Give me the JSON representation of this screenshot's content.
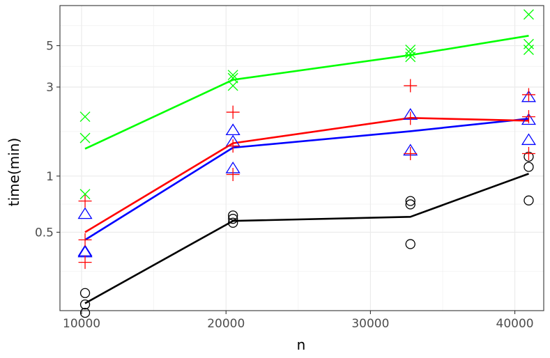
{
  "chart_data": {
    "type": "scatter",
    "xlabel": "n",
    "ylabel": "time(min)",
    "x_ticks": [
      10000,
      20000,
      30000,
      40000
    ],
    "x_tick_labels": [
      "10000",
      "20000",
      "30000",
      "40000"
    ],
    "y_ticks": [
      0.5,
      1,
      3,
      5
    ],
    "y_tick_labels": [
      "0.5",
      "1",
      "3",
      "5"
    ],
    "y_scale": "log",
    "xlim": [
      8500,
      42000
    ],
    "ylim": [
      0.19,
      8.2
    ],
    "grid": true,
    "legend": "none",
    "series": [
      {
        "marker": "circle",
        "color": "#000000",
        "points": [
          [
            10240,
            0.236
          ],
          [
            10240,
            0.205
          ],
          [
            10240,
            0.185
          ],
          [
            20480,
            0.615
          ],
          [
            20480,
            0.59
          ],
          [
            20480,
            0.562
          ],
          [
            32768,
            0.735
          ],
          [
            32768,
            0.705
          ],
          [
            32768,
            0.432
          ],
          [
            40960,
            1.27
          ],
          [
            40960,
            1.12
          ],
          [
            40960,
            0.74
          ]
        ],
        "line": [
          [
            10240,
            0.208
          ],
          [
            20480,
            0.575
          ],
          [
            32768,
            0.605
          ],
          [
            40960,
            1.03
          ]
        ]
      },
      {
        "marker": "triangle",
        "color": "#0000ff",
        "points": [
          [
            10240,
            0.626
          ],
          [
            10240,
            0.395
          ],
          [
            10240,
            0.39
          ],
          [
            20480,
            1.76
          ],
          [
            20480,
            1.53
          ],
          [
            20480,
            1.1
          ],
          [
            32768,
            2.13
          ],
          [
            32768,
            1.37
          ],
          [
            40960,
            2.65
          ],
          [
            40960,
            2.0
          ],
          [
            40960,
            1.56
          ]
        ],
        "line": [
          [
            10240,
            0.455
          ],
          [
            20480,
            1.42
          ],
          [
            32768,
            1.74
          ],
          [
            40960,
            2.03
          ]
        ]
      },
      {
        "marker": "plus",
        "color": "#ff0000",
        "points": [
          [
            10240,
            0.735
          ],
          [
            10240,
            0.455
          ],
          [
            10240,
            0.345
          ],
          [
            20480,
            2.2
          ],
          [
            20480,
            1.45
          ],
          [
            20480,
            1.02
          ],
          [
            32768,
            3.05
          ],
          [
            32768,
            2.04
          ],
          [
            32768,
            1.32
          ],
          [
            40960,
            2.73
          ],
          [
            40960,
            2.08
          ],
          [
            40960,
            1.32
          ]
        ],
        "line": [
          [
            10240,
            0.5
          ],
          [
            20480,
            1.5
          ],
          [
            32768,
            2.05
          ],
          [
            40960,
            1.98
          ]
        ]
      },
      {
        "marker": "cross",
        "color": "#00ff00",
        "points": [
          [
            10240,
            2.08
          ],
          [
            10240,
            1.6
          ],
          [
            10240,
            0.8
          ],
          [
            20480,
            3.48
          ],
          [
            20480,
            3.35
          ],
          [
            20480,
            3.05
          ],
          [
            32768,
            4.75
          ],
          [
            32768,
            4.55
          ],
          [
            32768,
            4.35
          ],
          [
            40960,
            7.35
          ],
          [
            40960,
            5.1
          ],
          [
            40960,
            4.75
          ]
        ],
        "line": [
          [
            10240,
            1.4
          ],
          [
            20480,
            3.28
          ],
          [
            32768,
            4.45
          ],
          [
            40960,
            5.65
          ]
        ]
      }
    ]
  }
}
